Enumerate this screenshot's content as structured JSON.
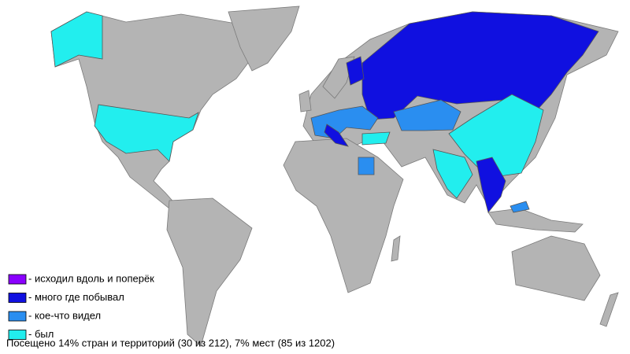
{
  "legend": {
    "items": [
      {
        "label": "- исходил вдоль и поперёк",
        "color": "#8a00ff"
      },
      {
        "label": "- много где побывал",
        "color": "#1010e0"
      },
      {
        "label": "- кое-что видел",
        "color": "#2a8ef0"
      },
      {
        "label": "- был",
        "color": "#22eeee"
      }
    ]
  },
  "footer": "Посещено 14% стран и территорий (30 из 212), 7% мест (85 из 1202)"
}
